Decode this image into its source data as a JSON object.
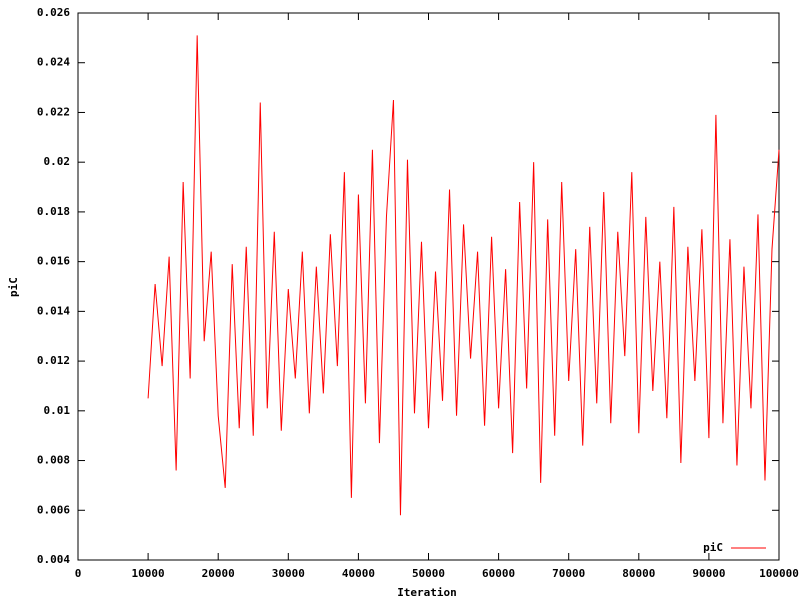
{
  "chart_data": {
    "type": "line",
    "xlabel": "Iteration",
    "ylabel": "piC",
    "x": [
      10000,
      11000,
      12000,
      13000,
      14000,
      15000,
      16000,
      17000,
      18000,
      19000,
      20000,
      21000,
      22000,
      23000,
      24000,
      25000,
      26000,
      27000,
      28000,
      29000,
      30000,
      31000,
      32000,
      33000,
      34000,
      35000,
      36000,
      37000,
      38000,
      39000,
      40000,
      41000,
      42000,
      43000,
      44000,
      45000,
      46000,
      47000,
      48000,
      49000,
      50000,
      51000,
      52000,
      53000,
      54000,
      55000,
      56000,
      57000,
      58000,
      59000,
      60000,
      61000,
      62000,
      63000,
      64000,
      65000,
      66000,
      67000,
      68000,
      69000,
      70000,
      71000,
      72000,
      73000,
      74000,
      75000,
      76000,
      77000,
      78000,
      79000,
      80000,
      81000,
      82000,
      83000,
      84000,
      85000,
      86000,
      87000,
      88000,
      89000,
      90000,
      91000,
      92000,
      93000,
      94000,
      95000,
      96000,
      97000,
      98000,
      99000,
      100000
    ],
    "series": [
      {
        "name": "piC",
        "color": "#ff0000",
        "values": [
          0.0105,
          0.0151,
          0.0118,
          0.0162,
          0.0076,
          0.0192,
          0.0113,
          0.0251,
          0.0128,
          0.0164,
          0.0098,
          0.0069,
          0.0159,
          0.0093,
          0.0166,
          0.009,
          0.0224,
          0.0101,
          0.0172,
          0.0092,
          0.0149,
          0.0113,
          0.0164,
          0.0099,
          0.0158,
          0.0107,
          0.0171,
          0.0118,
          0.0196,
          0.0065,
          0.0187,
          0.0103,
          0.0205,
          0.0087,
          0.0178,
          0.0225,
          0.0058,
          0.0201,
          0.0099,
          0.0168,
          0.0093,
          0.0156,
          0.0104,
          0.0189,
          0.0098,
          0.0175,
          0.0121,
          0.0164,
          0.0094,
          0.017,
          0.0101,
          0.0157,
          0.0083,
          0.0184,
          0.0109,
          0.02,
          0.0071,
          0.0177,
          0.009,
          0.0192,
          0.0112,
          0.0165,
          0.0086,
          0.0174,
          0.0103,
          0.0188,
          0.0095,
          0.0172,
          0.0122,
          0.0196,
          0.0091,
          0.0178,
          0.0108,
          0.016,
          0.0097,
          0.0182,
          0.0079,
          0.0166,
          0.0112,
          0.0173,
          0.0089,
          0.0219,
          0.0095,
          0.0169,
          0.0078,
          0.0158,
          0.0101,
          0.0179,
          0.0072,
          0.0165,
          0.0205
        ]
      }
    ],
    "xlim": [
      0,
      100000
    ],
    "xticks": [
      0,
      10000,
      20000,
      30000,
      40000,
      50000,
      60000,
      70000,
      80000,
      90000,
      100000
    ],
    "ylim": [
      0.004,
      0.026
    ],
    "yticks": [
      0.004,
      0.006,
      0.008,
      0.01,
      0.012,
      0.014,
      0.016,
      0.018,
      0.02,
      0.022,
      0.024,
      0.026
    ],
    "legend": "bottom-right",
    "grid": false
  }
}
